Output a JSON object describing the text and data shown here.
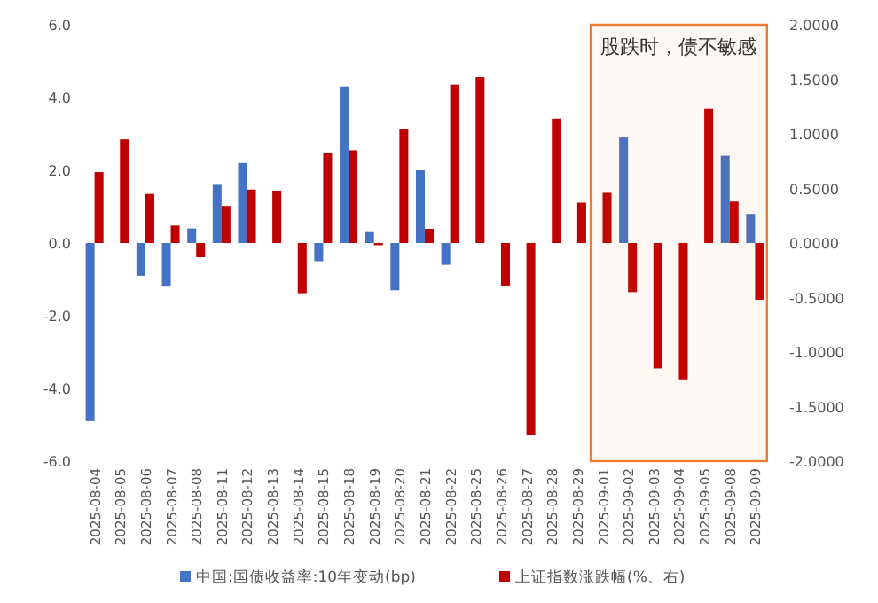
{
  "chart_data": {
    "type": "bar",
    "categories": [
      "2025-08-04",
      "2025-08-05",
      "2025-08-06",
      "2025-08-07",
      "2025-08-08",
      "2025-08-11",
      "2025-08-12",
      "2025-08-13",
      "2025-08-14",
      "2025-08-15",
      "2025-08-18",
      "2025-08-19",
      "2025-08-20",
      "2025-08-21",
      "2025-08-22",
      "2025-08-25",
      "2025-08-26",
      "2025-08-27",
      "2025-08-28",
      "2025-08-29",
      "2025-09-01",
      "2025-09-02",
      "2025-09-03",
      "2025-09-04",
      "2025-09-05",
      "2025-09-08",
      "2025-09-09"
    ],
    "series": [
      {
        "name": "中国:国债收益率:10年变动(bp)",
        "color": "#4472c4",
        "values": [
          -4.9,
          0,
          -0.9,
          -1.2,
          0.4,
          1.6,
          2.2,
          0,
          0,
          -0.5,
          4.3,
          0.3,
          -1.3,
          2.0,
          -0.6,
          0,
          0,
          0,
          0,
          0,
          0,
          2.9,
          0,
          0,
          0,
          2.4,
          0.8
        ]
      },
      {
        "name": "上证指数涨跌幅(%、右)",
        "color": "#c00000",
        "axis": "y2",
        "values": [
          0.65,
          0.95,
          0.45,
          0.16,
          -0.13,
          0.34,
          0.49,
          0.48,
          -0.46,
          0.83,
          0.85,
          -0.02,
          1.04,
          0.13,
          1.45,
          1.52,
          -0.39,
          -1.76,
          1.14,
          0.37,
          0.46,
          -0.45,
          -1.15,
          -1.25,
          1.23,
          0.38,
          -0.52
        ]
      }
    ],
    "ylim": [
      -6,
      6
    ],
    "yticks": [
      {
        "value": -6,
        "label": "-6.0"
      },
      {
        "value": -4,
        "label": "-4.0"
      },
      {
        "value": -2,
        "label": "-2.0"
      },
      {
        "value": 0,
        "label": "0.0"
      },
      {
        "value": 2,
        "label": "2.0"
      },
      {
        "value": 4,
        "label": "4.0"
      },
      {
        "value": 6,
        "label": "6.0"
      }
    ],
    "y2lim": [
      -2,
      2
    ],
    "y2ticks": [
      {
        "value": -2,
        "label": "-2.0000"
      },
      {
        "value": -1.5,
        "label": "-1.5000"
      },
      {
        "value": -1,
        "label": "-1.0000"
      },
      {
        "value": -0.5,
        "label": "-0.5000"
      },
      {
        "value": 0,
        "label": "0.0000"
      },
      {
        "value": 0.5,
        "label": "0.5000"
      },
      {
        "value": 1,
        "label": "1.0000"
      },
      {
        "value": 1.5,
        "label": "1.5000"
      },
      {
        "value": 2,
        "label": "2.0000"
      }
    ],
    "bands": [
      {
        "axis": "x",
        "from": "2025-09-01",
        "to": "2025-09-09",
        "label": "股跌时，债不敏感",
        "color": "#ed7d31"
      }
    ],
    "legend": "bottom",
    "grid": false
  }
}
